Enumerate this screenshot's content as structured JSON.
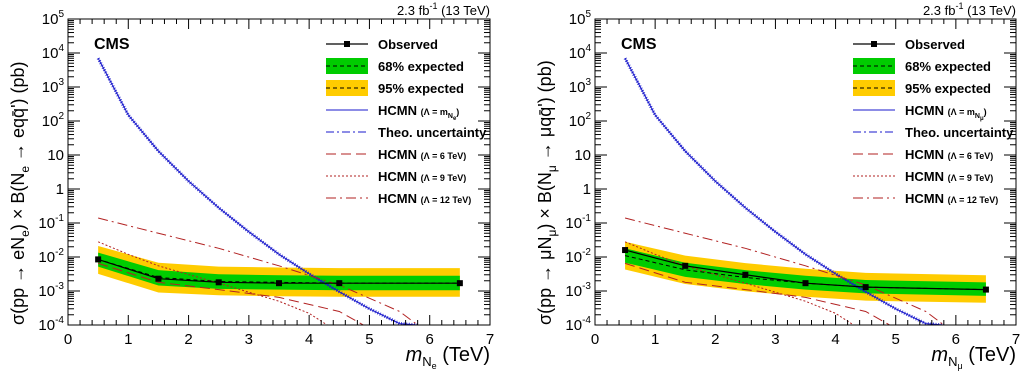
{
  "chart_data": [
    {
      "type": "line",
      "experiment": "CMS",
      "lumi_text": "2.3 fb",
      "lumi_sup": "-1",
      "energy_text": " (13 TeV)",
      "xlabel_main": "m",
      "xlabel_sub1": "N",
      "xlabel_sub2": "e",
      "xlabel_unit": " (TeV)",
      "ylabel": "σ(pp → eN",
      "ylabel_sub": "e",
      "ylabel_mid": ") × B(N",
      "ylabel_sub2": "e",
      "ylabel_end": " → eqq̄') (pb)",
      "xlim": [
        0,
        7
      ],
      "ylim": [
        0.0001,
        100000
      ],
      "yscale": "log",
      "xticks": [
        0,
        1,
        2,
        3,
        4,
        5,
        6,
        7
      ],
      "yticks": [
        {
          "v": 0.0001,
          "base": "10",
          "exp": "-4"
        },
        {
          "v": 0.001,
          "base": "10",
          "exp": "-3"
        },
        {
          "v": 0.01,
          "base": "10",
          "exp": "-2"
        },
        {
          "v": 0.1,
          "base": "10",
          "exp": "-1"
        },
        {
          "v": 1,
          "base": "1",
          "exp": ""
        },
        {
          "v": 10,
          "base": "10",
          "exp": ""
        },
        {
          "v": 100,
          "base": "10",
          "exp": "2"
        },
        {
          "v": 1000,
          "base": "10",
          "exp": "3"
        },
        {
          "v": 10000,
          "base": "10",
          "exp": "4"
        },
        {
          "v": 100000,
          "base": "10",
          "exp": "5"
        }
      ],
      "legend": {
        "observed": "Observed",
        "exp68": "68% expected",
        "exp95": "95% expected",
        "hcmn": "HCMN",
        "hcmn_lambda": "(Λ = m",
        "hcmn_lambda_sub": "N",
        "hcmn_lambda_sub2": "e",
        "hcmn_lambda_end": ")",
        "theo": "Theo. uncertainty",
        "l6": "(Λ = 6 TeV)",
        "l9": "(Λ = 9 TeV)",
        "l12": "(Λ = 12 TeV)"
      },
      "observed": {
        "x": [
          0.5,
          1.5,
          2.5,
          3.5,
          4.5,
          6.5
        ],
        "y": [
          0.0085,
          0.0023,
          0.0018,
          0.0017,
          0.0017,
          0.0017
        ]
      },
      "expected": {
        "x": [
          0.5,
          1.5,
          2.5,
          3.5,
          4.5,
          6.5
        ],
        "y": [
          0.0085,
          0.0025,
          0.0019,
          0.0018,
          0.0017,
          0.0017
        ]
      },
      "band68": {
        "x": [
          0.5,
          1.5,
          2.5,
          3.5,
          4.5,
          6.5
        ],
        "lo": [
          0.0052,
          0.00145,
          0.00115,
          0.0011,
          0.00105,
          0.00105
        ],
        "hi": [
          0.0135,
          0.0041,
          0.0031,
          0.0029,
          0.0028,
          0.0028
        ]
      },
      "band95": {
        "x": [
          0.5,
          1.5,
          2.5,
          3.5,
          4.5,
          6.5
        ],
        "lo": [
          0.0032,
          0.0009,
          0.00075,
          0.0007,
          0.00068,
          0.00068
        ],
        "hi": [
          0.021,
          0.0068,
          0.0052,
          0.0049,
          0.0047,
          0.0047
        ]
      },
      "hcmn": {
        "x": [
          0.5,
          1.0,
          1.5,
          2.0,
          2.5,
          3.0,
          3.5,
          4.0,
          4.5,
          5.0,
          5.5,
          5.8
        ],
        "y": [
          7000,
          150,
          13,
          1.7,
          0.28,
          0.055,
          0.012,
          0.0032,
          0.00095,
          0.0003,
          0.00011,
          0.0001
        ]
      },
      "l6": {
        "x": [
          0.5,
          1.5,
          2.5,
          3.5,
          4.5,
          4.9
        ],
        "y": [
          0.0065,
          0.0018,
          0.0011,
          0.00065,
          0.00025,
          0.0001
        ]
      },
      "l9": {
        "x": [
          0.5,
          1.0,
          1.5,
          2.5,
          3.5,
          4.0,
          4.3
        ],
        "y": [
          0.028,
          0.012,
          0.0055,
          0.0017,
          0.0005,
          0.00022,
          0.0001
        ]
      },
      "l12": {
        "x": [
          0.5,
          1.5,
          2.5,
          3.5,
          4.5,
          5.5,
          5.8
        ],
        "y": [
          0.14,
          0.05,
          0.018,
          0.0055,
          0.0015,
          0.00025,
          0.0001
        ]
      }
    },
    {
      "type": "line",
      "experiment": "CMS",
      "lumi_text": "2.3 fb",
      "lumi_sup": "-1",
      "energy_text": " (13 TeV)",
      "xlabel_main": "m",
      "xlabel_sub1": "N",
      "xlabel_sub2": "μ",
      "xlabel_unit": " (TeV)",
      "ylabel": "σ(pp → μN",
      "ylabel_sub": "μ",
      "ylabel_mid": ") × B(N",
      "ylabel_sub2": "μ",
      "ylabel_end": " → μqq̄') (pb)",
      "xlim": [
        0,
        7
      ],
      "ylim": [
        0.0001,
        100000
      ],
      "yscale": "log",
      "xticks": [
        0,
        1,
        2,
        3,
        4,
        5,
        6,
        7
      ],
      "yticks": [
        {
          "v": 0.0001,
          "base": "10",
          "exp": "-4"
        },
        {
          "v": 0.001,
          "base": "10",
          "exp": "-3"
        },
        {
          "v": 0.01,
          "base": "10",
          "exp": "-2"
        },
        {
          "v": 0.1,
          "base": "10",
          "exp": "-1"
        },
        {
          "v": 1,
          "base": "1",
          "exp": ""
        },
        {
          "v": 10,
          "base": "10",
          "exp": ""
        },
        {
          "v": 100,
          "base": "10",
          "exp": "2"
        },
        {
          "v": 1000,
          "base": "10",
          "exp": "3"
        },
        {
          "v": 10000,
          "base": "10",
          "exp": "4"
        },
        {
          "v": 100000,
          "base": "10",
          "exp": "5"
        }
      ],
      "legend": {
        "observed": "Observed",
        "exp68": "68% expected",
        "exp95": "95% expected",
        "hcmn": "HCMN",
        "hcmn_lambda": "(Λ = m",
        "hcmn_lambda_sub": "N",
        "hcmn_lambda_sub2": "μ",
        "hcmn_lambda_end": ")",
        "theo": "Theo. uncertainty",
        "l6": "(Λ = 6 TeV)",
        "l9": "(Λ = 9 TeV)",
        "l12": "(Λ = 12 TeV)"
      },
      "observed": {
        "x": [
          0.5,
          1.5,
          2.5,
          3.5,
          4.5,
          6.5
        ],
        "y": [
          0.016,
          0.0055,
          0.003,
          0.0017,
          0.0013,
          0.0011
        ]
      },
      "expected": {
        "x": [
          0.5,
          1.5,
          2.5,
          3.5,
          4.5,
          6.5
        ],
        "y": [
          0.011,
          0.0042,
          0.0025,
          0.0017,
          0.0013,
          0.0011
        ]
      },
      "band68": {
        "x": [
          0.5,
          1.5,
          2.5,
          3.5,
          4.5,
          6.5
        ],
        "lo": [
          0.0068,
          0.0026,
          0.0016,
          0.0011,
          0.00085,
          0.00072
        ],
        "hi": [
          0.018,
          0.0068,
          0.0041,
          0.0028,
          0.0021,
          0.0018
        ]
      },
      "band95": {
        "x": [
          0.5,
          1.5,
          2.5,
          3.5,
          4.5,
          6.5
        ],
        "lo": [
          0.0043,
          0.0016,
          0.00098,
          0.00068,
          0.00052,
          0.00045
        ],
        "hi": [
          0.028,
          0.011,
          0.0066,
          0.0045,
          0.0034,
          0.0029
        ]
      },
      "hcmn": {
        "x": [
          0.5,
          1.0,
          1.5,
          2.0,
          2.5,
          3.0,
          3.5,
          4.0,
          4.5,
          5.0,
          5.5,
          5.8
        ],
        "y": [
          7000,
          150,
          13,
          1.7,
          0.28,
          0.055,
          0.012,
          0.0032,
          0.00095,
          0.0003,
          0.00011,
          0.0001
        ]
      },
      "l6": {
        "x": [
          0.5,
          1.5,
          2.5,
          3.5,
          4.5,
          4.9
        ],
        "y": [
          0.0065,
          0.0018,
          0.0011,
          0.00065,
          0.00025,
          0.0001
        ]
      },
      "l9": {
        "x": [
          0.5,
          1.0,
          1.5,
          2.5,
          3.5,
          4.0,
          4.3
        ],
        "y": [
          0.028,
          0.012,
          0.0055,
          0.0017,
          0.0005,
          0.00022,
          0.0001
        ]
      },
      "l12": {
        "x": [
          0.5,
          1.5,
          2.5,
          3.5,
          4.5,
          5.5,
          5.8
        ],
        "y": [
          0.14,
          0.05,
          0.018,
          0.0055,
          0.0015,
          0.00025,
          0.0001
        ]
      }
    }
  ],
  "colors": {
    "band68": "#00cc00",
    "band95": "#ffcc00",
    "hcmn": "#1a1acc",
    "dashed_red": "#b22222",
    "text": "#000000"
  }
}
